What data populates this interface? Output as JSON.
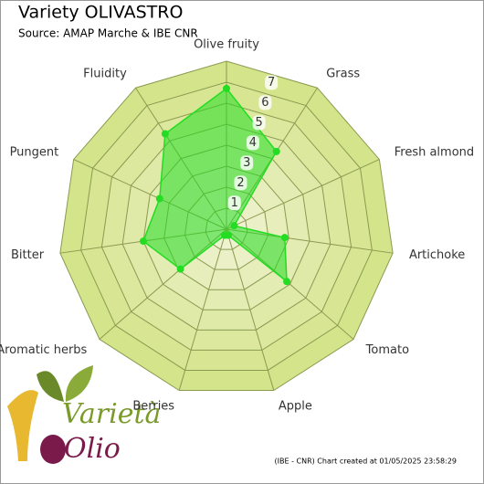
{
  "chart_data": {
    "type": "radar",
    "title": "Variety OLIVASTRO",
    "subtitle": "Source: AMAP Marche & IBE CNR",
    "categories": [
      "Olive fruity",
      "Grass",
      "Fresh almond",
      "Artichoke",
      "Tomato",
      "Apple",
      "Berries",
      "Aromatic herbs",
      "Bitter",
      "Pungent",
      "Fluidity"
    ],
    "series": [
      {
        "color": "#22dd22",
        "values": [
          6.7,
          4.4,
          0.4,
          2.8,
          3.8,
          0.3,
          0.3,
          2.9,
          4.0,
          3.5,
          5.4
        ]
      }
    ],
    "ylim": [
      0,
      8
    ],
    "yticks": [
      1,
      2,
      3,
      4,
      5,
      6,
      7
    ],
    "footer": "(IBE - CNR) Chart created at 01/05/2025 23:58:29",
    "logo": {
      "line1": "Varietà",
      "line2": "Olio"
    }
  }
}
